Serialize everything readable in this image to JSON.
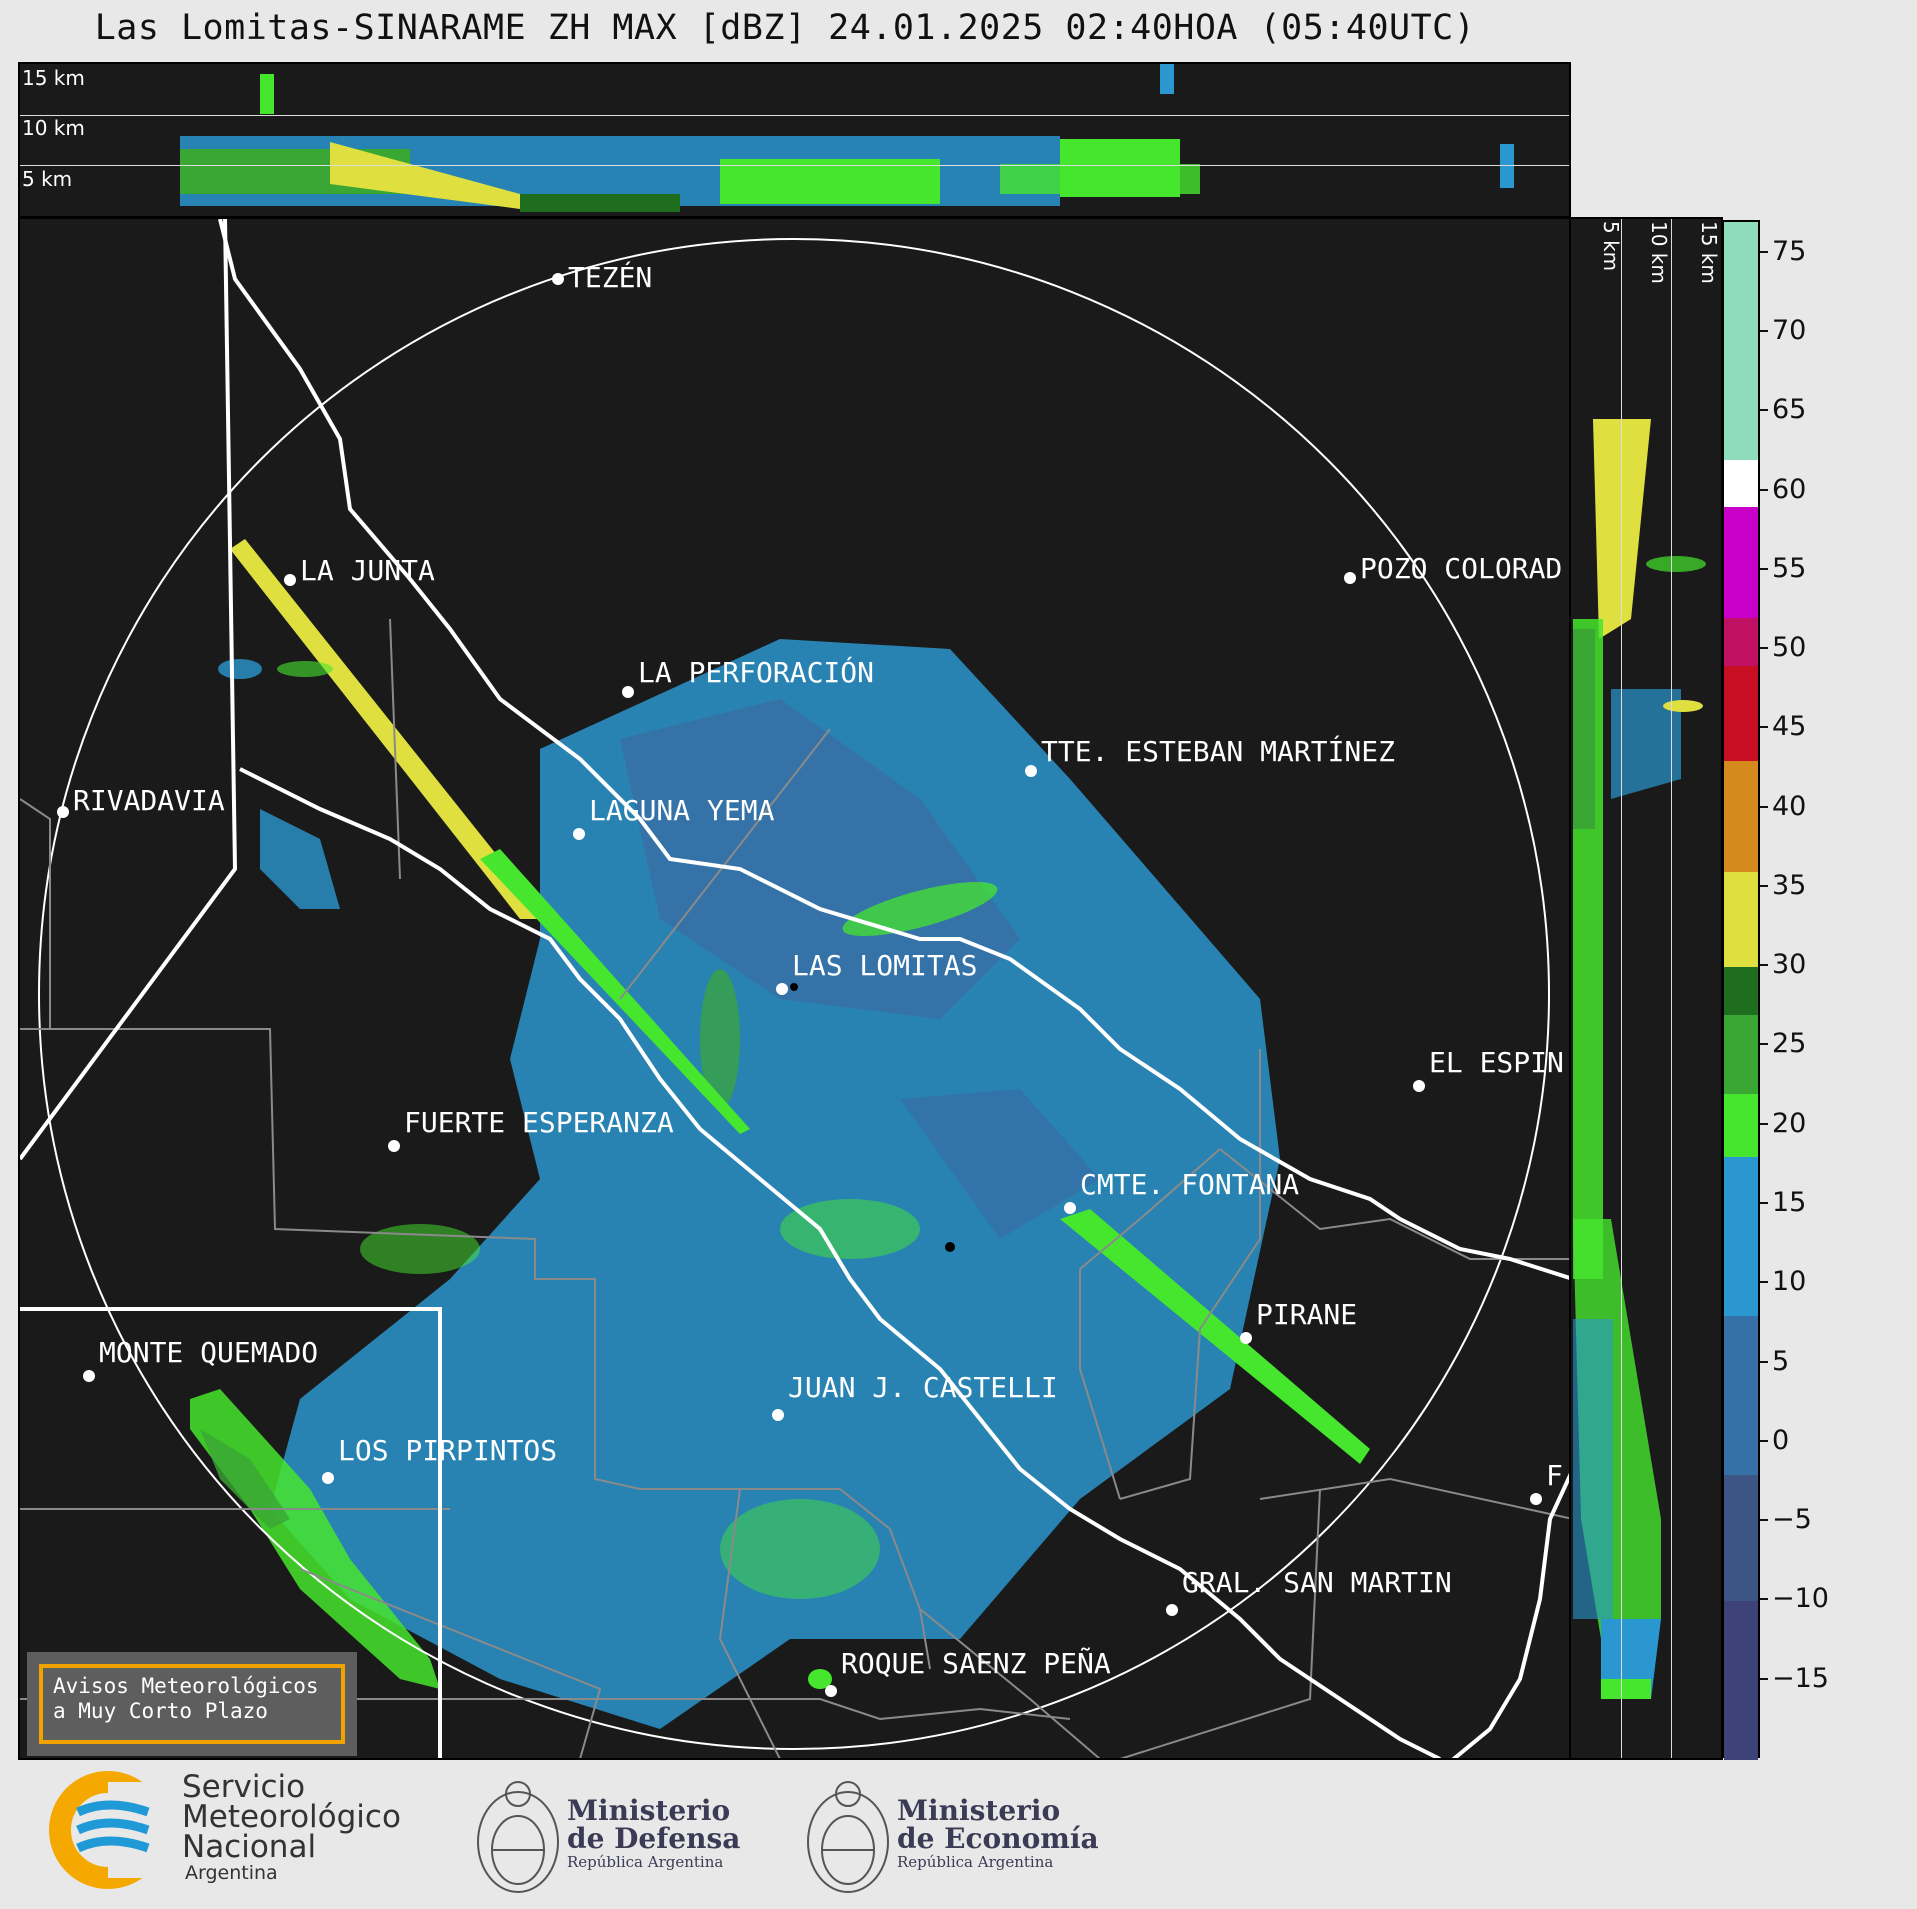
{
  "title": "Las Lomitas-SINARAME ZH MAX [dBZ] 24.01.2025 02:40HOA (05:40UTC)",
  "top_section": {
    "altitude_labels": [
      "15 km",
      "10 km",
      "5 km"
    ]
  },
  "right_section": {
    "altitude_labels": [
      "5 km",
      "10 km",
      "15 km"
    ]
  },
  "map": {
    "locations": [
      {
        "name": "TEZÉN"
      },
      {
        "name": "LA JUNTA"
      },
      {
        "name": "POZO COLORAD"
      },
      {
        "name": "LA PERFORACIÓN"
      },
      {
        "name": "TTE. ESTEBAN MARTÍNEZ"
      },
      {
        "name": "RIVADAVIA"
      },
      {
        "name": "LAGUNA YEMA"
      },
      {
        "name": "LAS LOMITAS"
      },
      {
        "name": "EL ESPIN"
      },
      {
        "name": "FUERTE ESPERANZA"
      },
      {
        "name": "CMTE. FONTANA"
      },
      {
        "name": "PIRANE"
      },
      {
        "name": "MONTE QUEMADO"
      },
      {
        "name": "JUAN J. CASTELLI"
      },
      {
        "name": "LOS PIRPINTOS"
      },
      {
        "name": "GRAL. SAN MARTIN"
      },
      {
        "name": "ROQUE SAENZ PEÑA"
      },
      {
        "name": "F"
      }
    ]
  },
  "colorbar": {
    "unit": "dBZ",
    "tick_labels": [
      "75",
      "70",
      "65",
      "60",
      "55",
      "50",
      "45",
      "40",
      "35",
      "30",
      "25",
      "20",
      "15",
      "10",
      "5",
      "0",
      "−5",
      "−10",
      "−15"
    ],
    "bands": [
      {
        "from": -20,
        "to": -10,
        "color": "#3e4377"
      },
      {
        "from": -10,
        "to": -2,
        "color": "#3c5585"
      },
      {
        "from": -2,
        "to": 8,
        "color": "#3570a6"
      },
      {
        "from": 8,
        "to": 18,
        "color": "#2a97d0"
      },
      {
        "from": 18,
        "to": 22,
        "color": "#46e62e"
      },
      {
        "from": 22,
        "to": 27,
        "color": "#3aa634"
      },
      {
        "from": 27,
        "to": 30,
        "color": "#1f6d1e"
      },
      {
        "from": 30,
        "to": 36,
        "color": "#dfe040"
      },
      {
        "from": 36,
        "to": 43,
        "color": "#d58a1e"
      },
      {
        "from": 43,
        "to": 49,
        "color": "#c70e23"
      },
      {
        "from": 49,
        "to": 52,
        "color": "#c01064"
      },
      {
        "from": 52,
        "to": 59,
        "color": "#c800c8"
      },
      {
        "from": 59,
        "to": 62,
        "color": "#ffffff"
      },
      {
        "from": 62,
        "to": 77,
        "color": "#8fdcba"
      }
    ]
  },
  "notice": {
    "line1": "Avisos Meteorológicos",
    "line2": "a Muy Corto Plazo"
  },
  "footer": {
    "smn": {
      "line1": "Servicio",
      "line2": "Meteorológico",
      "line3": "Nacional",
      "country": "Argentina"
    },
    "defensa": {
      "line1": "Ministerio",
      "line2": "de Defensa",
      "sub": "República Argentina"
    },
    "economia": {
      "line1": "Ministerio",
      "line2": "de Economía",
      "sub": "República Argentina"
    }
  }
}
